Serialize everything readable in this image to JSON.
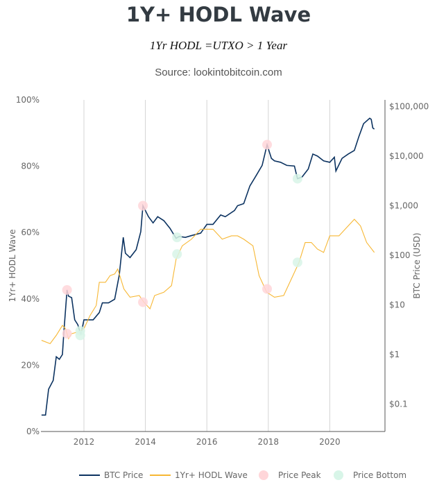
{
  "header": {
    "title": "1Y+ HODL Wave",
    "subtitle": "1Yr HODL =UTXO > 1 Year",
    "source": "Source: lookintobitcoin.com"
  },
  "chart_data": {
    "type": "line",
    "title": "1Y+ HODL Wave",
    "xlabel": "",
    "ylabel_left": "1Yr+ HODL Wave",
    "ylabel_right": "BTC Price (USD)",
    "x_ticks": [
      "2012",
      "2014",
      "2016",
      "2018",
      "2020"
    ],
    "x_tick_values": [
      2012,
      2014,
      2016,
      2018,
      2020
    ],
    "xlim": [
      2010.6,
      2021.8
    ],
    "y_left_ticks": [
      "0%",
      "20%",
      "40%",
      "60%",
      "80%",
      "100%"
    ],
    "y_left_values": [
      0,
      20,
      40,
      60,
      80,
      100
    ],
    "ylim_left": [
      0,
      100
    ],
    "y_right_ticks": [
      "$0.1",
      "$1",
      "$10",
      "$100",
      "$1,000",
      "$10,000",
      "$100,000"
    ],
    "y_right_values": [
      0.1,
      1,
      10,
      100,
      1000,
      10000,
      100000
    ],
    "y_right_scale": "log",
    "grid": "vertical",
    "legend_placement": "bottom",
    "series": [
      {
        "name": "BTC Price",
        "axis": "right",
        "color": "#0b3260",
        "points": [
          [
            2010.62,
            0.06
          ],
          [
            2010.75,
            0.06
          ],
          [
            2010.85,
            0.2
          ],
          [
            2011.0,
            0.3
          ],
          [
            2011.1,
            0.9
          ],
          [
            2011.2,
            0.8
          ],
          [
            2011.3,
            1
          ],
          [
            2011.35,
            3
          ],
          [
            2011.45,
            20
          ],
          [
            2011.5,
            15
          ],
          [
            2011.6,
            14
          ],
          [
            2011.7,
            5
          ],
          [
            2011.8,
            4
          ],
          [
            2011.9,
            2.5
          ],
          [
            2012.0,
            5
          ],
          [
            2012.1,
            5
          ],
          [
            2012.3,
            5
          ],
          [
            2012.5,
            7
          ],
          [
            2012.6,
            11
          ],
          [
            2012.8,
            11
          ],
          [
            2013.0,
            13
          ],
          [
            2013.15,
            40
          ],
          [
            2013.28,
            230
          ],
          [
            2013.35,
            110
          ],
          [
            2013.5,
            90
          ],
          [
            2013.7,
            130
          ],
          [
            2013.85,
            300
          ],
          [
            2013.92,
            1000
          ],
          [
            2014.0,
            800
          ],
          [
            2014.1,
            600
          ],
          [
            2014.25,
            450
          ],
          [
            2014.4,
            600
          ],
          [
            2014.6,
            500
          ],
          [
            2014.8,
            350
          ],
          [
            2015.0,
            220
          ],
          [
            2015.1,
            240
          ],
          [
            2015.3,
            230
          ],
          [
            2015.5,
            250
          ],
          [
            2015.8,
            280
          ],
          [
            2016.0,
            420
          ],
          [
            2016.2,
            420
          ],
          [
            2016.45,
            650
          ],
          [
            2016.6,
            600
          ],
          [
            2016.9,
            800
          ],
          [
            2017.0,
            1000
          ],
          [
            2017.2,
            1100
          ],
          [
            2017.4,
            2500
          ],
          [
            2017.6,
            4000
          ],
          [
            2017.8,
            6500
          ],
          [
            2017.96,
            17000
          ],
          [
            2018.1,
            9000
          ],
          [
            2018.2,
            8000
          ],
          [
            2018.4,
            7500
          ],
          [
            2018.6,
            6500
          ],
          [
            2018.85,
            6300
          ],
          [
            2018.95,
            3500
          ],
          [
            2019.1,
            3800
          ],
          [
            2019.3,
            5500
          ],
          [
            2019.45,
            11000
          ],
          [
            2019.6,
            10000
          ],
          [
            2019.8,
            8000
          ],
          [
            2020.0,
            7500
          ],
          [
            2020.15,
            9500
          ],
          [
            2020.2,
            5000
          ],
          [
            2020.4,
            9000
          ],
          [
            2020.6,
            11000
          ],
          [
            2020.8,
            13000
          ],
          [
            2020.95,
            25000
          ],
          [
            2021.1,
            45000
          ],
          [
            2021.3,
            58000
          ],
          [
            2021.35,
            55000
          ],
          [
            2021.4,
            37000
          ],
          [
            2021.45,
            35000
          ]
        ]
      },
      {
        "name": "1Yr+ HODL Wave",
        "axis": "left",
        "color": "#f7b733",
        "points": [
          [
            2010.62,
            27.5
          ],
          [
            2010.9,
            26.5
          ],
          [
            2011.1,
            29
          ],
          [
            2011.3,
            32
          ],
          [
            2011.4,
            31
          ],
          [
            2011.5,
            28
          ],
          [
            2011.6,
            29.5
          ],
          [
            2011.8,
            30
          ],
          [
            2012.0,
            31
          ],
          [
            2012.2,
            35
          ],
          [
            2012.4,
            38
          ],
          [
            2012.5,
            45
          ],
          [
            2012.7,
            45
          ],
          [
            2012.85,
            47
          ],
          [
            2013.0,
            47.5
          ],
          [
            2013.1,
            49
          ],
          [
            2013.2,
            46
          ],
          [
            2013.3,
            43
          ],
          [
            2013.5,
            40.5
          ],
          [
            2013.8,
            41
          ],
          [
            2013.95,
            39
          ],
          [
            2014.15,
            37
          ],
          [
            2014.3,
            41
          ],
          [
            2014.6,
            42
          ],
          [
            2014.85,
            44
          ],
          [
            2015.0,
            52
          ],
          [
            2015.2,
            56
          ],
          [
            2015.5,
            58
          ],
          [
            2015.8,
            61
          ],
          [
            2016.2,
            61
          ],
          [
            2016.5,
            58
          ],
          [
            2016.8,
            59
          ],
          [
            2017.0,
            59
          ],
          [
            2017.2,
            58
          ],
          [
            2017.5,
            56
          ],
          [
            2017.7,
            47
          ],
          [
            2017.95,
            42
          ],
          [
            2018.2,
            40.5
          ],
          [
            2018.5,
            41
          ],
          [
            2018.8,
            47
          ],
          [
            2019.0,
            51
          ],
          [
            2019.2,
            57
          ],
          [
            2019.4,
            57
          ],
          [
            2019.6,
            55
          ],
          [
            2019.8,
            54
          ],
          [
            2020.0,
            59
          ],
          [
            2020.3,
            59
          ],
          [
            2020.5,
            61
          ],
          [
            2020.8,
            64
          ],
          [
            2021.0,
            62
          ],
          [
            2021.2,
            57
          ],
          [
            2021.45,
            54
          ]
        ]
      }
    ],
    "markers": [
      {
        "name": "Price Peak",
        "color": "#ffd6d9",
        "points": [
          {
            "x": 2011.45,
            "price": 20
          },
          {
            "x": 2013.92,
            "price": 1000
          },
          {
            "x": 2017.96,
            "price": 17000
          },
          {
            "x": 2011.45,
            "hodl": 29.5
          },
          {
            "x": 2013.92,
            "hodl": 39
          },
          {
            "x": 2017.96,
            "hodl": 43
          }
        ]
      },
      {
        "name": "Price Bottom",
        "color": "#d8f5e8",
        "points": [
          {
            "x": 2011.88,
            "price": 3
          },
          {
            "x": 2015.03,
            "price": 230
          },
          {
            "x": 2018.95,
            "price": 3500
          },
          {
            "x": 2011.88,
            "hodl": 29
          },
          {
            "x": 2015.03,
            "hodl": 53.5
          },
          {
            "x": 2018.95,
            "hodl": 51
          }
        ]
      }
    ],
    "legend": [
      "BTC Price",
      "1Yr+ HODL Wave",
      "Price Peak",
      "Price Bottom"
    ]
  }
}
